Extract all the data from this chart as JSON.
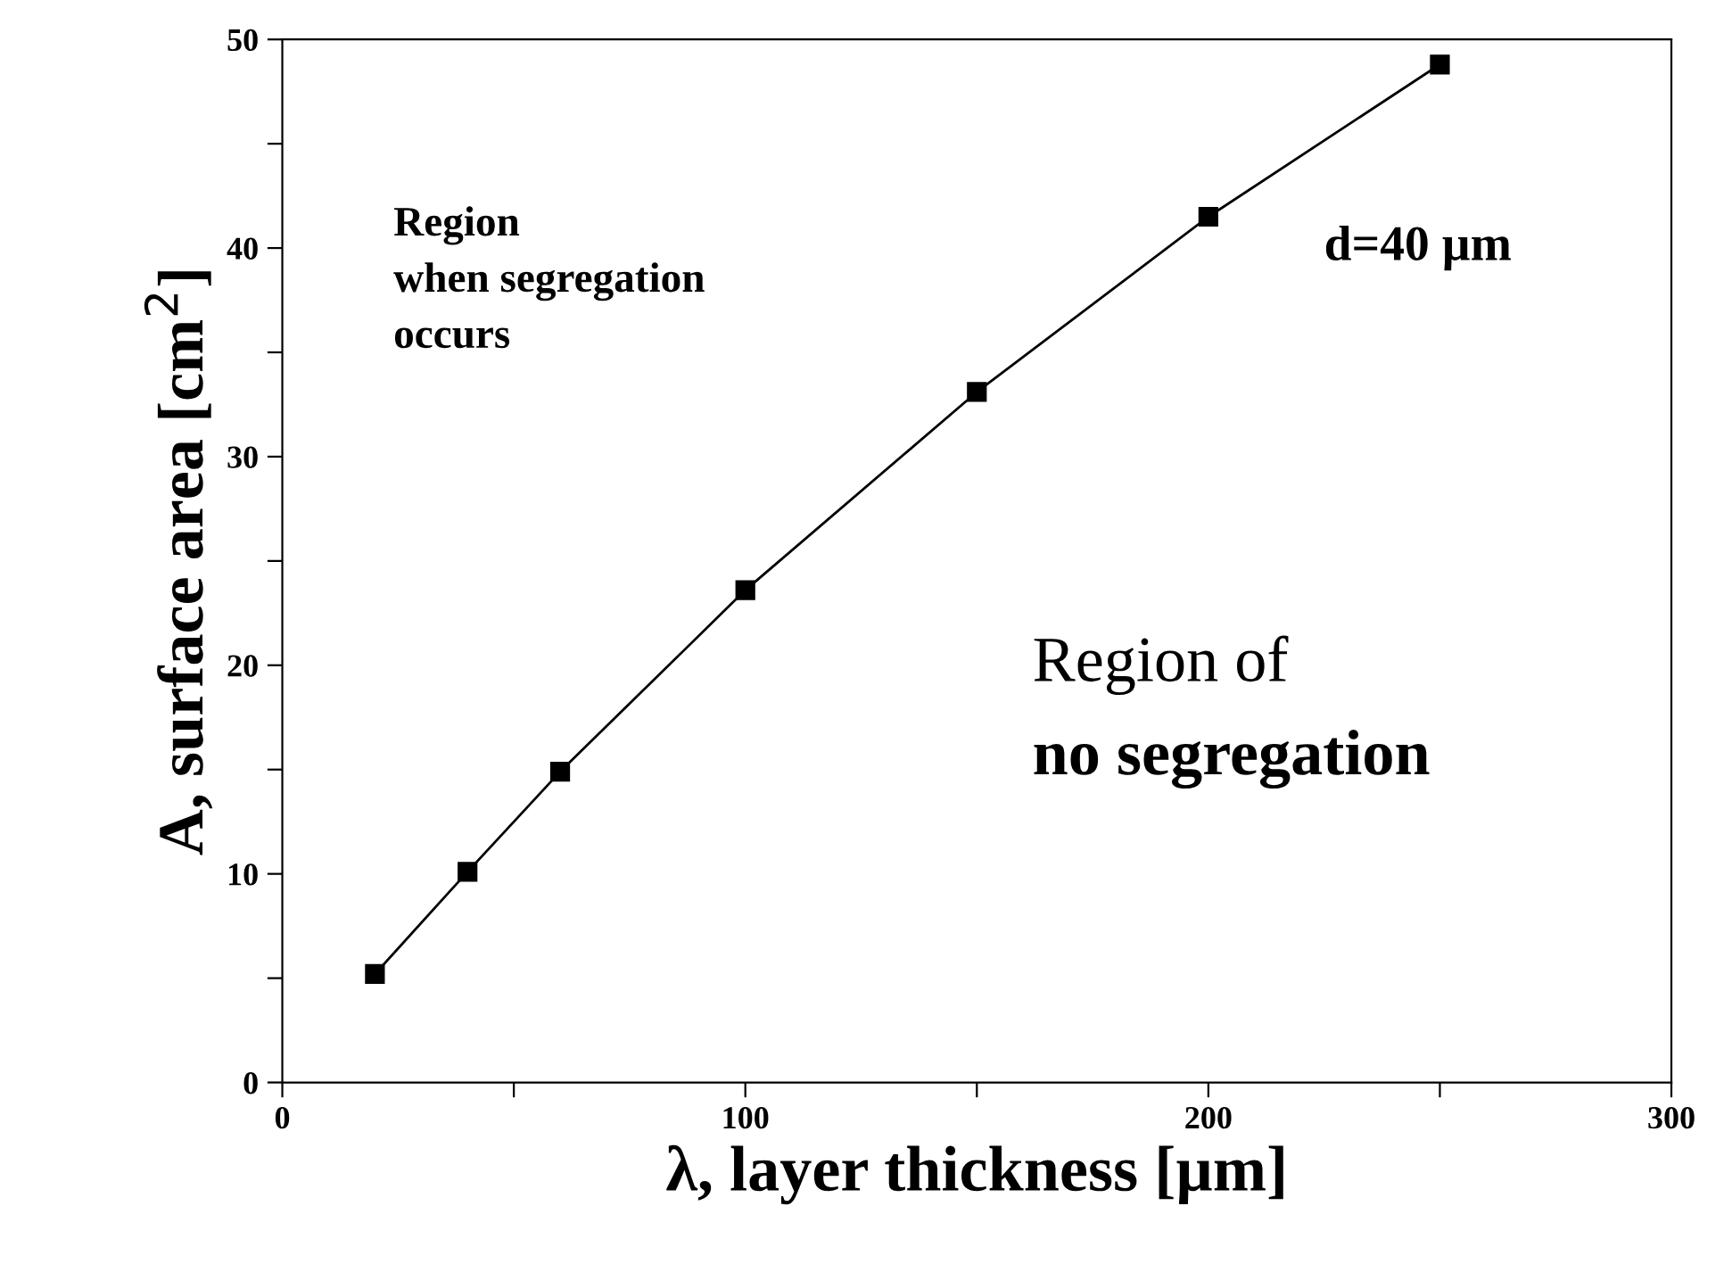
{
  "chart_data": {
    "type": "line",
    "xlabel": "λ, layer thickness [µm]",
    "ylabel": "A, surface area [cm$^{2}$]",
    "x": [
      20,
      40,
      60,
      100,
      150,
      200,
      250
    ],
    "series": [
      {
        "color": "#000000",
        "values": [
          5.2,
          10.1,
          14.9,
          23.6,
          33.1,
          41.5,
          48.8
        ]
      }
    ],
    "marker": "square",
    "line_style": "solid",
    "xlim": [
      0,
      300
    ],
    "xticks": [
      0,
      {
        "value": 50,
        "label": null
      },
      100,
      {
        "value": 150,
        "label": null
      },
      200,
      {
        "value": 250,
        "label": null
      },
      300
    ],
    "ylim": [
      0,
      50
    ],
    "yticks": [
      0,
      {
        "value": 5,
        "label": null
      },
      10,
      {
        "value": 15,
        "label": null
      },
      20,
      {
        "value": 25,
        "label": null
      },
      30,
      {
        "value": 35,
        "label": null
      },
      40,
      {
        "value": 45,
        "label": null
      },
      50
    ],
    "grid": false,
    "annotations": [
      "Region\nwhen segregation\noccurs",
      "d=40 µm",
      "Region of",
      "no segregation"
    ]
  }
}
